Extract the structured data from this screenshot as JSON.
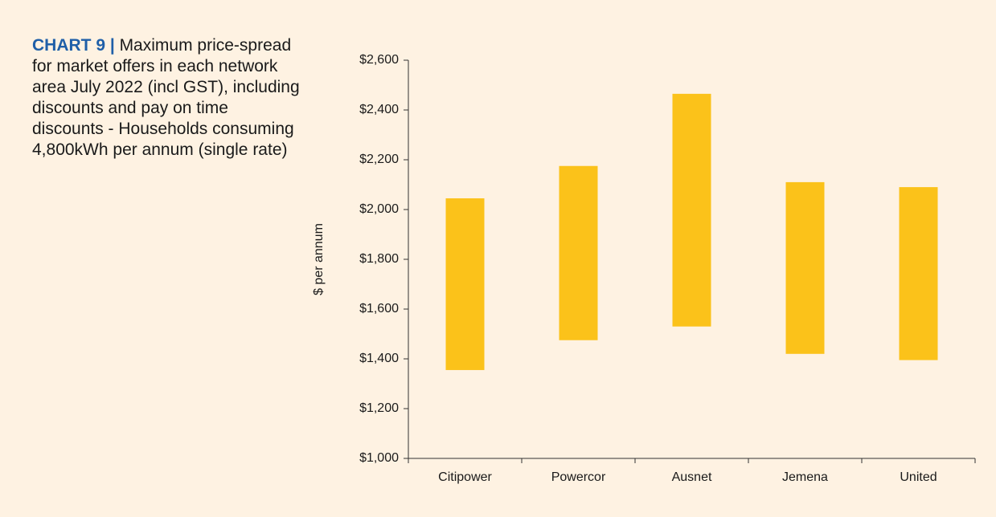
{
  "chart_data": {
    "type": "floatingbar",
    "title": {
      "label": "CHART 9 |",
      "text": "Maximum price-spread for market offers in each network area July 2022 (incl GST), including discounts and pay on time discounts - Households consuming 4,800kWh per annum (single rate)"
    },
    "ylabel": "$ per annum",
    "categories": [
      "Citipower",
      "Powercor",
      "Ausnet",
      "Jemena",
      "United"
    ],
    "low": [
      1355,
      1475,
      1530,
      1420,
      1395
    ],
    "high": [
      2045,
      2175,
      2465,
      2110,
      2090
    ],
    "color": "#fbc21a",
    "ylim": [
      1000,
      2600
    ],
    "yticks": [
      {
        "value": 1000,
        "label": "$1,000"
      },
      {
        "value": 1200,
        "label": "$1,200"
      },
      {
        "value": 1400,
        "label": "$1,400"
      },
      {
        "value": 1600,
        "label": "$1,600"
      },
      {
        "value": 1800,
        "label": "$1,800"
      },
      {
        "value": 2000,
        "label": "$2,000"
      },
      {
        "value": 2200,
        "label": "$2,200"
      },
      {
        "value": 2400,
        "label": "$2,400"
      },
      {
        "value": 2600,
        "label": "$2,600"
      }
    ]
  }
}
